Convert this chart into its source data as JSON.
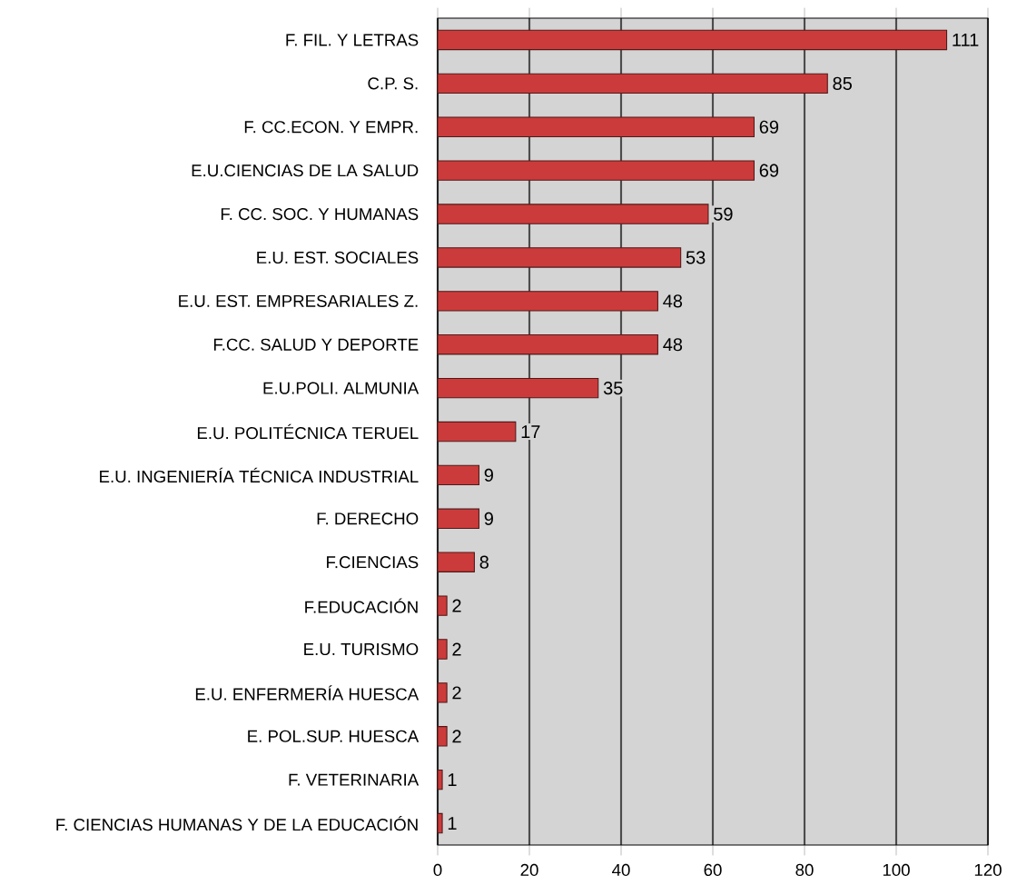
{
  "chart_data": {
    "type": "bar",
    "orientation": "horizontal",
    "categories": [
      "F. FIL. Y LETRAS",
      "C.P. S.",
      "F. CC.ECON. Y EMPR.",
      "E.U.CIENCIAS DE LA SALUD",
      "F.  CC. SOC. Y HUMANAS",
      "E.U. EST. SOCIALES",
      "E.U. EST. EMPRESARIALES Z.",
      "F.CC.  SALUD Y  DEPORTE",
      "E.U.POLI. ALMUNIA",
      "E.U. POLITÉCNICA TERUEL",
      "E.U. INGENIERÍA TÉCNICA INDUSTRIAL",
      "F. DERECHO",
      "F.CIENCIAS",
      "F.EDUCACIÓN",
      "E.U. TURISMO",
      "E.U. ENFERMERÍA HUESCA",
      "E. POL.SUP.  HUESCA",
      "F. VETERINARIA",
      "F. CIENCIAS HUMANAS Y DE LA EDUCACIÓN"
    ],
    "values": [
      111,
      85,
      69,
      69,
      59,
      53,
      48,
      48,
      35,
      17,
      9,
      9,
      8,
      2,
      2,
      2,
      2,
      1,
      1
    ],
    "color": "#cc3b3b",
    "xlim": [
      0,
      120
    ],
    "xticks": [
      0,
      20,
      40,
      60,
      80,
      100,
      120
    ],
    "grid": "x",
    "data_labels": true
  }
}
